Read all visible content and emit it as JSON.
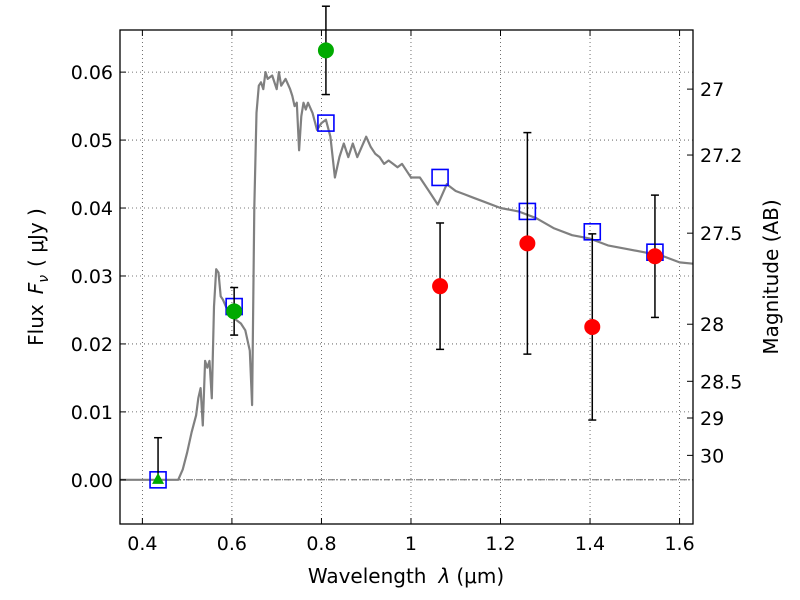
{
  "chart_data": {
    "type": "scatter",
    "title": "",
    "xlabel_prefix": "Wavelength",
    "xlabel_symbol": "λ",
    "xlabel_unit": "(μm)",
    "ylabel_prefix": "Flux",
    "ylabel_symbol": "F",
    "ylabel_subscript": "ν",
    "ylabel_unit": "( μJy )",
    "y2label": "Magnitude (AB)",
    "xlim": [
      0.35,
      1.63
    ],
    "ylim": [
      -0.0065,
      0.0662
    ],
    "grid": true,
    "x_ticks": [
      {
        "value": 0.4,
        "label": "0.4"
      },
      {
        "value": 0.6,
        "label": "0.6"
      },
      {
        "value": 0.8,
        "label": "0.8"
      },
      {
        "value": 1.0,
        "label": "1"
      },
      {
        "value": 1.2,
        "label": "1.2"
      },
      {
        "value": 1.4,
        "label": "1.4"
      },
      {
        "value": 1.6,
        "label": "1.6"
      }
    ],
    "y_ticks": [
      {
        "value": 0.0,
        "label": "0.00"
      },
      {
        "value": 0.01,
        "label": "0.01"
      },
      {
        "value": 0.02,
        "label": "0.02"
      },
      {
        "value": 0.03,
        "label": "0.03"
      },
      {
        "value": 0.04,
        "label": "0.04"
      },
      {
        "value": 0.05,
        "label": "0.05"
      },
      {
        "value": 0.06,
        "label": "0.06"
      }
    ],
    "y2_ticks": [
      {
        "label": "27",
        "flux": 0.0575
      },
      {
        "label": "27.2",
        "flux": 0.0478
      },
      {
        "label": "27.5",
        "flux": 0.0363
      },
      {
        "label": "28",
        "flux": 0.0229
      },
      {
        "label": "28.5",
        "flux": 0.0145
      },
      {
        "label": "29",
        "flux": 0.0091
      },
      {
        "label": "30",
        "flux": 0.0036
      }
    ],
    "series": [
      {
        "kind": "model-spectrum-line",
        "color": "#808080",
        "x": [
          0.35,
          0.48,
          0.49,
          0.5,
          0.51,
          0.52,
          0.525,
          0.53,
          0.535,
          0.54,
          0.545,
          0.55,
          0.555,
          0.56,
          0.565,
          0.57,
          0.575,
          0.58,
          0.59,
          0.6,
          0.61,
          0.62,
          0.63,
          0.64,
          0.645,
          0.65,
          0.655,
          0.66,
          0.665,
          0.67,
          0.675,
          0.68,
          0.69,
          0.7,
          0.705,
          0.71,
          0.72,
          0.73,
          0.735,
          0.74,
          0.745,
          0.75,
          0.755,
          0.76,
          0.765,
          0.77,
          0.78,
          0.79,
          0.8,
          0.81,
          0.82,
          0.83,
          0.84,
          0.845,
          0.85,
          0.86,
          0.87,
          0.88,
          0.89,
          0.9,
          0.91,
          0.92,
          0.93,
          0.94,
          0.95,
          0.96,
          0.97,
          0.98,
          0.99,
          1.0,
          1.02,
          1.04,
          1.06,
          1.08,
          1.1,
          1.12,
          1.14,
          1.16,
          1.2,
          1.24,
          1.28,
          1.32,
          1.36,
          1.4,
          1.44,
          1.48,
          1.52,
          1.56,
          1.6,
          1.63
        ],
        "y": [
          0.0,
          0.0,
          0.0015,
          0.004,
          0.007,
          0.0095,
          0.012,
          0.0135,
          0.008,
          0.0175,
          0.0165,
          0.0175,
          0.012,
          0.0255,
          0.031,
          0.0305,
          0.027,
          0.0265,
          0.025,
          0.024,
          0.0235,
          0.023,
          0.022,
          0.019,
          0.011,
          0.04,
          0.054,
          0.058,
          0.0585,
          0.0575,
          0.06,
          0.059,
          0.0595,
          0.0575,
          0.06,
          0.058,
          0.059,
          0.0575,
          0.0565,
          0.055,
          0.0555,
          0.0485,
          0.0535,
          0.0555,
          0.0545,
          0.0555,
          0.054,
          0.0515,
          0.0525,
          0.053,
          0.0505,
          0.0445,
          0.0475,
          0.0485,
          0.0495,
          0.0475,
          0.0495,
          0.0475,
          0.049,
          0.0505,
          0.049,
          0.048,
          0.0475,
          0.0465,
          0.047,
          0.0465,
          0.046,
          0.0465,
          0.0455,
          0.0445,
          0.0445,
          0.0425,
          0.0405,
          0.0435,
          0.0425,
          0.042,
          0.0415,
          0.041,
          0.04,
          0.0395,
          0.0385,
          0.037,
          0.036,
          0.0355,
          0.0345,
          0.034,
          0.0335,
          0.033,
          0.032,
          0.0318
        ]
      },
      {
        "kind": "open-squares",
        "color": "#0000ff",
        "x": [
          0.435,
          0.605,
          0.81,
          1.065,
          1.26,
          1.405,
          1.545
        ],
        "y": [
          0.0,
          0.0255,
          0.0525,
          0.0445,
          0.0395,
          0.0365,
          0.0335
        ]
      },
      {
        "kind": "green-detections",
        "color": "#00aa00",
        "x": [
          0.605,
          0.81
        ],
        "y": [
          0.0248,
          0.0632
        ],
        "err_low": [
          0.0035,
          0.0065
        ],
        "err_high": [
          0.0035,
          0.0065
        ]
      },
      {
        "kind": "green-upper-triangle",
        "color": "#00aa00",
        "x": [
          0.435
        ],
        "y": [
          0.0
        ],
        "err_low": [
          0.0
        ],
        "err_high": [
          0.0062
        ]
      },
      {
        "kind": "red-detections",
        "color": "#ff0000",
        "x": [
          1.065,
          1.26,
          1.405,
          1.545
        ],
        "y": [
          0.0285,
          0.0348,
          0.0225,
          0.0329
        ],
        "err_low": [
          0.0093,
          0.0163,
          0.0137,
          0.009
        ],
        "err_high": [
          0.0093,
          0.0163,
          0.0137,
          0.009
        ]
      }
    ],
    "reference_line_y": 0.0
  }
}
